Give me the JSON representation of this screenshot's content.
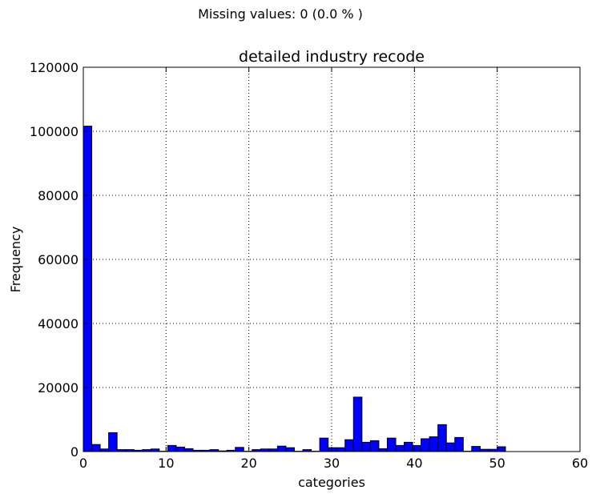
{
  "header": {
    "missing_values_text": "Missing values: 0 (0.0 % )"
  },
  "chart_data": {
    "type": "bar",
    "title": "detailed industry recode",
    "xlabel": "categories",
    "ylabel": "Frequency",
    "xlim": [
      0,
      60
    ],
    "ylim": [
      0,
      120000
    ],
    "xticks": [
      0,
      10,
      20,
      30,
      40,
      50,
      60
    ],
    "yticks": [
      0,
      20000,
      40000,
      60000,
      80000,
      100000,
      120000
    ],
    "grid": true,
    "bar_color": "#0000ff",
    "bin_width": 1.02,
    "bin_left_edges": [
      0,
      1.02,
      2.04,
      3.06,
      4.08,
      5.1,
      6.12,
      7.14,
      8.16,
      9.18,
      10.2,
      11.22,
      12.24,
      13.26,
      14.28,
      15.3,
      16.32,
      17.34,
      18.36,
      19.38,
      20.4,
      21.42,
      22.44,
      23.46,
      24.48,
      25.5,
      26.52,
      27.54,
      28.56,
      29.58,
      30.6,
      31.62,
      32.64,
      33.66,
      34.68,
      35.7,
      36.72,
      37.74,
      38.76,
      39.78,
      40.8,
      41.82,
      42.84,
      43.86,
      44.88,
      45.9,
      46.92,
      47.94,
      48.96,
      49.98
    ],
    "values": [
      101600,
      2200,
      800,
      5900,
      600,
      600,
      400,
      600,
      800,
      100,
      1900,
      1400,
      900,
      400,
      400,
      600,
      200,
      400,
      1300,
      100,
      600,
      800,
      800,
      1700,
      1200,
      100,
      600,
      100,
      4200,
      1200,
      1200,
      3700,
      17000,
      2900,
      3400,
      900,
      4200,
      1900,
      2900,
      1900,
      4000,
      4600,
      8400,
      2700,
      4400,
      100,
      1600,
      700,
      700,
      1500
    ]
  }
}
